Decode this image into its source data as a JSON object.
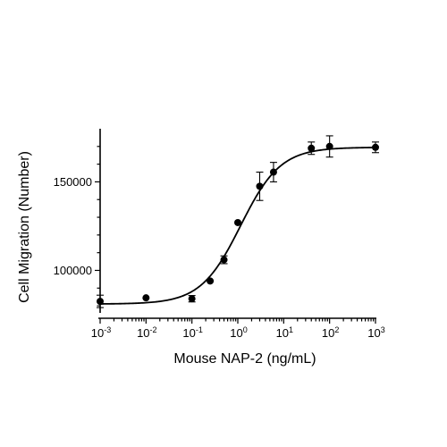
{
  "chart_data": {
    "type": "scatter",
    "title": "",
    "xlabel": "Mouse NAP-2 (ng/mL)",
    "ylabel": "Cell Migration (Number)",
    "x_scale": "log",
    "xlim": [
      0.001,
      1000
    ],
    "ylim": [
      76000,
      180000
    ],
    "x_ticks": [
      {
        "value": 0.001,
        "base": "10",
        "exp": "-3"
      },
      {
        "value": 0.01,
        "base": "10",
        "exp": "-2"
      },
      {
        "value": 0.1,
        "base": "10",
        "exp": "-1"
      },
      {
        "value": 1,
        "base": "10",
        "exp": "0"
      },
      {
        "value": 10,
        "base": "10",
        "exp": "1"
      },
      {
        "value": 100,
        "base": "10",
        "exp": "2"
      },
      {
        "value": 1000,
        "base": "10",
        "exp": "3"
      }
    ],
    "y_ticks": [
      {
        "value": 100000,
        "label": "100000"
      },
      {
        "value": 150000,
        "label": "150000"
      }
    ],
    "grid": false,
    "legend": "none",
    "points": [
      {
        "x": 0.001,
        "y": 82500,
        "err": 3500
      },
      {
        "x": 0.01,
        "y": 84500,
        "err": 0
      },
      {
        "x": 0.1,
        "y": 84000,
        "err": 1800
      },
      {
        "x": 0.25,
        "y": 94000,
        "err": 0
      },
      {
        "x": 0.5,
        "y": 106000,
        "err": 2200
      },
      {
        "x": 1,
        "y": 127000,
        "err": 0
      },
      {
        "x": 3,
        "y": 147500,
        "err": 8000
      },
      {
        "x": 6,
        "y": 155500,
        "err": 5500
      },
      {
        "x": 40,
        "y": 169000,
        "err": 3500
      },
      {
        "x": 100,
        "y": 170000,
        "err": 6000
      },
      {
        "x": 1000,
        "y": 169500,
        "err": 3000
      }
    ],
    "fit": {
      "bottom": 81000,
      "top": 169500,
      "ec50": 1.15,
      "hill": 1.0
    }
  }
}
